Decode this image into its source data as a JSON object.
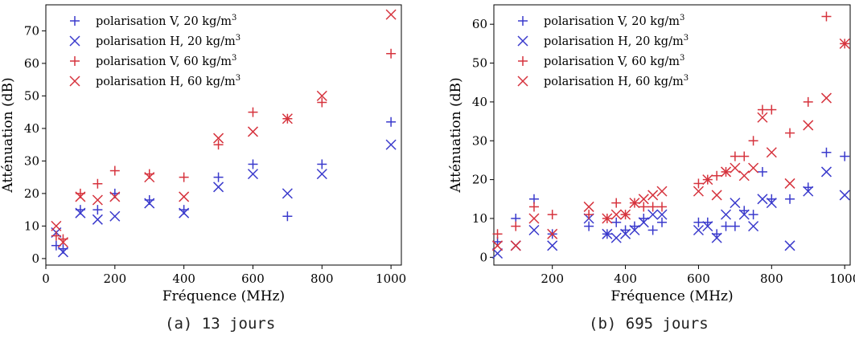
{
  "colors": {
    "blue": "#3a3acc",
    "red": "#d6333d"
  },
  "captions": [
    "(a) 13 jours",
    "(b) 695 jours"
  ],
  "chart_data": [
    {
      "type": "scatter",
      "title": "",
      "xlabel": "Fréquence (MHz)",
      "ylabel": "Atténuation (dB)",
      "xlim": [
        0,
        1030
      ],
      "ylim": [
        -2,
        78
      ],
      "xticks": [
        0,
        200,
        400,
        600,
        800,
        1000
      ],
      "yticks": [
        0,
        10,
        20,
        30,
        40,
        50,
        60,
        70
      ],
      "legend_position": "top-left",
      "series": [
        {
          "name": "polarisation V, 20 kg/m",
          "sup": "3",
          "marker": "plus",
          "color": "blue",
          "points": [
            [
              30,
              4
            ],
            [
              50,
              3
            ],
            [
              100,
              15
            ],
            [
              150,
              15
            ],
            [
              200,
              20
            ],
            [
              300,
              18
            ],
            [
              400,
              15
            ],
            [
              500,
              25
            ],
            [
              600,
              29
            ],
            [
              700,
              13
            ],
            [
              800,
              29
            ],
            [
              1000,
              42
            ]
          ]
        },
        {
          "name": "polarisation H, 20 kg/m",
          "sup": "3",
          "marker": "x",
          "color": "blue",
          "points": [
            [
              30,
              8
            ],
            [
              50,
              2
            ],
            [
              100,
              14
            ],
            [
              150,
              12
            ],
            [
              200,
              13
            ],
            [
              300,
              17
            ],
            [
              400,
              14
            ],
            [
              500,
              22
            ],
            [
              600,
              26
            ],
            [
              700,
              20
            ],
            [
              800,
              26
            ],
            [
              1000,
              35
            ]
          ]
        },
        {
          "name": "polarisation V, 60 kg/m",
          "sup": "3",
          "marker": "plus",
          "color": "red",
          "points": [
            [
              30,
              7
            ],
            [
              50,
              6
            ],
            [
              100,
              20
            ],
            [
              150,
              23
            ],
            [
              200,
              27
            ],
            [
              300,
              26
            ],
            [
              400,
              25
            ],
            [
              500,
              35
            ],
            [
              600,
              45
            ],
            [
              700,
              43
            ],
            [
              800,
              48
            ],
            [
              1000,
              63
            ]
          ]
        },
        {
          "name": "polarisation H, 60 kg/m",
          "sup": "3",
          "marker": "x",
          "color": "red",
          "points": [
            [
              30,
              10
            ],
            [
              50,
              5
            ],
            [
              100,
              19
            ],
            [
              150,
              18
            ],
            [
              200,
              19
            ],
            [
              300,
              25
            ],
            [
              400,
              19
            ],
            [
              500,
              37
            ],
            [
              600,
              39
            ],
            [
              700,
              43
            ],
            [
              800,
              50
            ],
            [
              1000,
              75
            ]
          ]
        }
      ]
    },
    {
      "type": "scatter",
      "title": "",
      "xlabel": "Fréquence (MHz)",
      "ylabel": "Atténuation (dB)",
      "xlim": [
        40,
        1015
      ],
      "ylim": [
        -2,
        65
      ],
      "xticks": [
        200,
        400,
        600,
        800,
        1000
      ],
      "yticks": [
        0,
        10,
        20,
        30,
        40,
        50,
        60
      ],
      "legend_position": "top-left",
      "series": [
        {
          "name": "polarisation V, 20 kg/m",
          "sup": "3",
          "marker": "plus",
          "color": "blue",
          "points": [
            [
              50,
              4
            ],
            [
              100,
              10
            ],
            [
              150,
              15
            ],
            [
              200,
              6
            ],
            [
              300,
              8
            ],
            [
              350,
              6
            ],
            [
              375,
              9
            ],
            [
              400,
              7
            ],
            [
              425,
              8
            ],
            [
              450,
              10
            ],
            [
              475,
              7
            ],
            [
              500,
              9
            ],
            [
              600,
              9
            ],
            [
              625,
              9
            ],
            [
              650,
              6
            ],
            [
              675,
              8
            ],
            [
              700,
              8
            ],
            [
              725,
              12
            ],
            [
              750,
              11
            ],
            [
              775,
              22
            ],
            [
              800,
              15
            ],
            [
              850,
              15
            ],
            [
              900,
              18
            ],
            [
              950,
              27
            ],
            [
              1000,
              26
            ]
          ]
        },
        {
          "name": "polarisation H, 20 kg/m",
          "sup": "3",
          "marker": "x",
          "color": "blue",
          "points": [
            [
              50,
              1
            ],
            [
              100,
              3
            ],
            [
              150,
              7
            ],
            [
              200,
              3
            ],
            [
              300,
              10
            ],
            [
              350,
              6
            ],
            [
              375,
              5
            ],
            [
              400,
              6
            ],
            [
              425,
              7
            ],
            [
              450,
              9
            ],
            [
              475,
              11
            ],
            [
              500,
              11
            ],
            [
              600,
              7
            ],
            [
              625,
              8
            ],
            [
              650,
              5
            ],
            [
              675,
              11
            ],
            [
              700,
              14
            ],
            [
              725,
              11
            ],
            [
              750,
              8
            ],
            [
              775,
              15
            ],
            [
              800,
              14
            ],
            [
              850,
              3
            ],
            [
              900,
              17
            ],
            [
              950,
              22
            ],
            [
              1000,
              16
            ]
          ]
        },
        {
          "name": "polarisation V, 60 kg/m",
          "sup": "3",
          "marker": "plus",
          "color": "red",
          "points": [
            [
              50,
              6
            ],
            [
              100,
              8
            ],
            [
              150,
              13
            ],
            [
              200,
              11
            ],
            [
              300,
              11
            ],
            [
              350,
              10
            ],
            [
              375,
              14
            ],
            [
              400,
              11
            ],
            [
              425,
              14
            ],
            [
              450,
              13
            ],
            [
              475,
              13
            ],
            [
              500,
              13
            ],
            [
              600,
              19
            ],
            [
              625,
              20
            ],
            [
              650,
              21
            ],
            [
              675,
              22
            ],
            [
              700,
              26
            ],
            [
              725,
              26
            ],
            [
              750,
              30
            ],
            [
              775,
              38
            ],
            [
              800,
              38
            ],
            [
              850,
              32
            ],
            [
              900,
              40
            ],
            [
              950,
              62
            ],
            [
              1000,
              55
            ]
          ]
        },
        {
          "name": "polarisation H, 60 kg/m",
          "sup": "3",
          "marker": "x",
          "color": "red",
          "points": [
            [
              50,
              3
            ],
            [
              100,
              3
            ],
            [
              150,
              10
            ],
            [
              200,
              6
            ],
            [
              300,
              13
            ],
            [
              350,
              10
            ],
            [
              375,
              11
            ],
            [
              400,
              11
            ],
            [
              425,
              14
            ],
            [
              450,
              15
            ],
            [
              475,
              16
            ],
            [
              500,
              17
            ],
            [
              600,
              17
            ],
            [
              625,
              20
            ],
            [
              650,
              16
            ],
            [
              675,
              22
            ],
            [
              700,
              23
            ],
            [
              725,
              21
            ],
            [
              750,
              23
            ],
            [
              775,
              36
            ],
            [
              800,
              27
            ],
            [
              850,
              19
            ],
            [
              900,
              34
            ],
            [
              950,
              41
            ],
            [
              1000,
              55
            ]
          ]
        }
      ]
    }
  ]
}
